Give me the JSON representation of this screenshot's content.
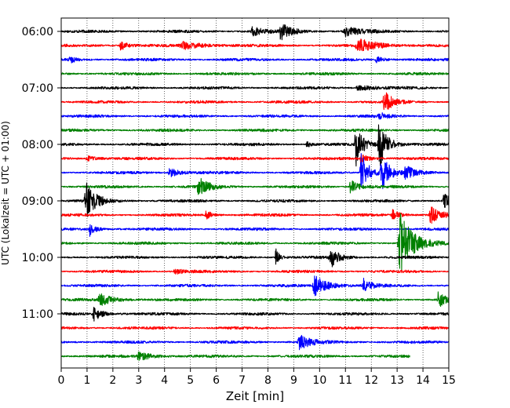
{
  "chart_data": {
    "type": "line",
    "title": "",
    "xlabel": "Zeit  [min]",
    "ylabel": "UTC (Lokalzeit = UTC + 01:00)",
    "xlim": [
      0,
      15
    ],
    "x_ticks": [
      "0",
      "1",
      "2",
      "3",
      "4",
      "5",
      "6",
      "7",
      "8",
      "9",
      "10",
      "11",
      "12",
      "13",
      "14",
      "15"
    ],
    "y_ticks": [
      {
        "label": "06:00",
        "row": 0
      },
      {
        "label": "07:00",
        "row": 4
      },
      {
        "label": "08:00",
        "row": 8
      },
      {
        "label": "09:00",
        "row": 12
      },
      {
        "label": "10:00",
        "row": 16
      },
      {
        "label": "11:00",
        "row": 20
      }
    ],
    "grid": {
      "x": true,
      "y": false,
      "style": "dotted"
    },
    "trace_interval_minutes": 15,
    "trace_colors": [
      "#000000",
      "#ff0000",
      "#0000ff",
      "#008000"
    ],
    "traces": [
      {
        "start": "06:00",
        "end_min": 15,
        "events": [
          [
            7.4,
            0.35,
            0.35
          ],
          [
            8.5,
            0.55,
            0.4
          ],
          [
            11.0,
            0.3,
            0.6
          ]
        ]
      },
      {
        "start": "06:15",
        "end_min": 15,
        "events": [
          [
            2.3,
            0.35,
            0.25
          ],
          [
            4.7,
            0.25,
            0.8
          ],
          [
            11.5,
            0.45,
            0.7
          ]
        ]
      },
      {
        "start": "06:30",
        "end_min": 15,
        "events": [
          [
            0.3,
            0.25,
            0.2
          ],
          [
            12.2,
            0.22,
            0.3
          ]
        ]
      },
      {
        "start": "06:45",
        "end_min": 15,
        "events": []
      },
      {
        "start": "07:00",
        "end_min": 15,
        "events": [
          [
            11.5,
            0.25,
            0.5
          ]
        ]
      },
      {
        "start": "07:15",
        "end_min": 15,
        "events": [
          [
            12.5,
            0.75,
            0.3
          ]
        ]
      },
      {
        "start": "07:30",
        "end_min": 15,
        "events": [
          [
            12.3,
            0.22,
            0.3
          ]
        ]
      },
      {
        "start": "07:45",
        "end_min": 15,
        "events": []
      },
      {
        "start": "08:00",
        "end_min": 15,
        "events": [
          [
            9.5,
            0.25,
            0.15
          ],
          [
            11.4,
            1.6,
            0.25
          ],
          [
            12.3,
            1.7,
            0.3
          ]
        ]
      },
      {
        "start": "08:15",
        "end_min": 15,
        "events": [
          [
            1.0,
            0.22,
            0.3
          ],
          [
            11.6,
            0.3,
            0.3
          ]
        ]
      },
      {
        "start": "08:30",
        "end_min": 15,
        "events": [
          [
            4.2,
            0.3,
            0.4
          ],
          [
            11.6,
            1.4,
            0.3
          ],
          [
            12.4,
            1.2,
            0.3
          ],
          [
            13.3,
            0.5,
            0.3
          ]
        ]
      },
      {
        "start": "08:45",
        "end_min": 15,
        "events": [
          [
            5.3,
            0.7,
            0.35
          ],
          [
            11.2,
            0.5,
            0.3
          ]
        ]
      },
      {
        "start": "09:00",
        "end_min": 15,
        "events": [
          [
            0.95,
            1.35,
            0.35
          ],
          [
            14.8,
            0.6,
            0.3
          ]
        ]
      },
      {
        "start": "09:15",
        "end_min": 15,
        "events": [
          [
            5.6,
            0.35,
            0.2
          ],
          [
            12.8,
            0.4,
            0.25
          ],
          [
            14.3,
            0.6,
            0.35
          ]
        ]
      },
      {
        "start": "09:30",
        "end_min": 15,
        "events": [
          [
            1.1,
            0.5,
            0.2
          ]
        ]
      },
      {
        "start": "09:45",
        "end_min": 15,
        "events": [
          [
            13.1,
            2.3,
            0.45
          ]
        ]
      },
      {
        "start": "10:00",
        "end_min": 15,
        "events": [
          [
            8.3,
            0.75,
            0.12
          ],
          [
            10.4,
            0.8,
            0.3
          ]
        ]
      },
      {
        "start": "10:15",
        "end_min": 15,
        "events": [
          [
            4.4,
            0.25,
            0.3
          ]
        ]
      },
      {
        "start": "10:30",
        "end_min": 15,
        "events": [
          [
            9.8,
            0.7,
            0.5
          ],
          [
            11.7,
            0.45,
            0.3
          ]
        ]
      },
      {
        "start": "10:45",
        "end_min": 15,
        "events": [
          [
            1.5,
            0.4,
            0.5
          ],
          [
            14.6,
            0.6,
            0.25
          ]
        ]
      },
      {
        "start": "11:00",
        "end_min": 15,
        "events": [
          [
            1.25,
            0.5,
            0.3
          ]
        ]
      },
      {
        "start": "11:15",
        "end_min": 15,
        "events": []
      },
      {
        "start": "11:30",
        "end_min": 15,
        "events": [
          [
            9.2,
            0.55,
            0.4
          ]
        ]
      },
      {
        "start": "11:45",
        "end_min": 13.5,
        "events": [
          [
            3.0,
            0.3,
            0.5
          ]
        ]
      }
    ]
  }
}
